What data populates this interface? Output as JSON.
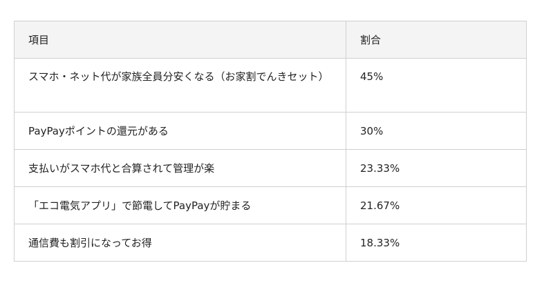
{
  "table": {
    "headers": [
      "項目",
      "割合"
    ],
    "rows": [
      {
        "item": "スマホ・ネット代が家族全員分安くなる（お家割でんきセット）",
        "ratio": "45%"
      },
      {
        "item": "PayPayポイントの還元がある",
        "ratio": "30%"
      },
      {
        "item": "支払いがスマホ代と合算されて管理が楽",
        "ratio": "23.33%"
      },
      {
        "item": "「エコ電気アプリ」で節電してPayPayが貯まる",
        "ratio": "21.67%"
      },
      {
        "item": "通信費も割引になってお得",
        "ratio": "18.33%"
      }
    ]
  }
}
